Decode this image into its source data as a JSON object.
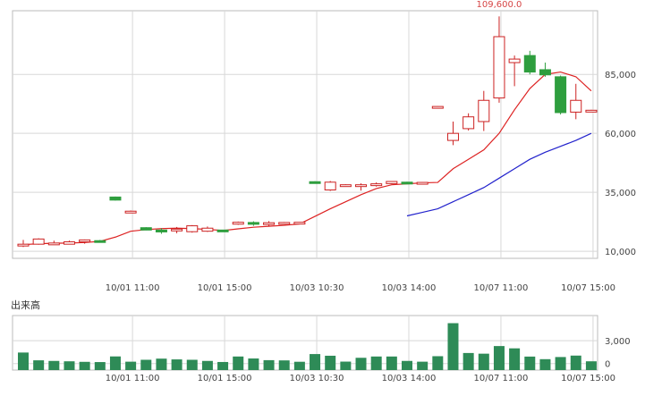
{
  "chart_data": [
    {
      "type": "candlestick",
      "title": "",
      "x_tick_labels": [
        "10/01 11:00",
        "10/01 15:00",
        "10/03 10:30",
        "10/03 14:00",
        "10/07 11:00",
        "10/07 15:00"
      ],
      "x_tick_indices": [
        7,
        13,
        19,
        25,
        31,
        37
      ],
      "y_ticks": [
        10000,
        35000,
        60000,
        85000
      ],
      "y_tick_labels": [
        "10,000",
        "35,000",
        "60,000",
        "85,000"
      ],
      "ylim": [
        7000,
        112000
      ],
      "max_label": "109,600.0",
      "max_index": 31,
      "grid": true,
      "colors": {
        "up": "#cc2222",
        "down": "#2e9e3e",
        "ma_short": "#dd2222",
        "ma_long": "#2222cc",
        "grid": "#d8d8d8",
        "axis": "#bbbbbb"
      },
      "candles": [
        {
          "o": 12500,
          "h": 14800,
          "l": 11800,
          "c": 13000
        },
        {
          "o": 13000,
          "h": 15500,
          "l": 12800,
          "c": 15200
        },
        {
          "o": 13500,
          "h": 14500,
          "l": 12900,
          "c": 13500
        },
        {
          "o": 13000,
          "h": 14500,
          "l": 12900,
          "c": 14000
        },
        {
          "o": 14000,
          "h": 15000,
          "l": 13200,
          "c": 14800
        },
        {
          "o": 14500,
          "h": 14800,
          "l": 14000,
          "c": 14200
        },
        {
          "o": 33000,
          "h": 33200,
          "l": 31500,
          "c": 31700
        },
        {
          "o": 27000,
          "h": 27300,
          "l": 26900,
          "c": 27000
        },
        {
          "o": 20000,
          "h": 20200,
          "l": 18900,
          "c": 19000
        },
        {
          "o": 19000,
          "h": 19800,
          "l": 17400,
          "c": 18200
        },
        {
          "o": 18700,
          "h": 20300,
          "l": 17600,
          "c": 19400
        },
        {
          "o": 18300,
          "h": 21100,
          "l": 17900,
          "c": 20800
        },
        {
          "o": 18500,
          "h": 20500,
          "l": 18200,
          "c": 19800
        },
        {
          "o": 19000,
          "h": 19100,
          "l": 18600,
          "c": 18800
        },
        {
          "o": 21500,
          "h": 22600,
          "l": 21200,
          "c": 22300
        },
        {
          "o": 22200,
          "h": 22700,
          "l": 20800,
          "c": 21800
        },
        {
          "o": 21500,
          "h": 22800,
          "l": 20600,
          "c": 22100
        },
        {
          "o": 22200,
          "h": 22400,
          "l": 21900,
          "c": 22200
        },
        {
          "o": 22200,
          "h": 22400,
          "l": 22000,
          "c": 22300
        },
        {
          "o": 39500,
          "h": 39700,
          "l": 38700,
          "c": 39000
        },
        {
          "o": 36000,
          "h": 39800,
          "l": 35600,
          "c": 39300
        },
        {
          "o": 38200,
          "h": 38400,
          "l": 37900,
          "c": 38200
        },
        {
          "o": 38200,
          "h": 38800,
          "l": 35700,
          "c": 38200
        },
        {
          "o": 38000,
          "h": 39200,
          "l": 37400,
          "c": 38600
        },
        {
          "o": 38700,
          "h": 39700,
          "l": 38500,
          "c": 39600
        },
        {
          "o": 39300,
          "h": 39500,
          "l": 38800,
          "c": 39100
        },
        {
          "o": 39200,
          "h": 39300,
          "l": 38900,
          "c": 39200
        },
        {
          "o": 71400,
          "h": 71500,
          "l": 71200,
          "c": 71400
        },
        {
          "o": 57000,
          "h": 65000,
          "l": 55000,
          "c": 60000
        },
        {
          "o": 62000,
          "h": 68500,
          "l": 61200,
          "c": 67000
        },
        {
          "o": 65000,
          "h": 78000,
          "l": 61000,
          "c": 74000
        },
        {
          "o": 75000,
          "h": 109600,
          "l": 73000,
          "c": 101000
        },
        {
          "o": 90000,
          "h": 93000,
          "l": 80000,
          "c": 91500
        },
        {
          "o": 93000,
          "h": 95000,
          "l": 85000,
          "c": 86000
        },
        {
          "o": 87000,
          "h": 90000,
          "l": 84000,
          "c": 84800
        },
        {
          "o": 84000,
          "h": 84500,
          "l": 68000,
          "c": 68800
        },
        {
          "o": 69000,
          "h": 81000,
          "l": 66000,
          "c": 74000
        },
        {
          "o": 69800,
          "h": 70000,
          "l": 69600,
          "c": 69800
        }
      ],
      "ma_short": [
        12800,
        13200,
        13400,
        13500,
        13700,
        14200,
        16000,
        18500,
        19200,
        19600,
        19800,
        19600,
        19300,
        18800,
        19500,
        20200,
        20600,
        21000,
        21600,
        24800,
        28000,
        31000,
        34000,
        36600,
        38200,
        38600,
        39000,
        39200,
        45000,
        49000,
        53000,
        60000,
        70000,
        79000,
        85000,
        86000,
        84000,
        78000
      ],
      "ma_long_start": 25,
      "ma_long": [
        25000,
        26500,
        28000,
        31000,
        34000,
        37000,
        41000,
        45000,
        49000,
        52000,
        54500,
        57000,
        60000
      ]
    },
    {
      "type": "bar",
      "title": "出来高",
      "y_ticks": [
        0,
        3000
      ],
      "y_tick_labels": [
        "0",
        "3,000"
      ],
      "ylim": [
        -850,
        6300
      ],
      "x_tick_labels": [
        "10/01 11:00",
        "10/01 15:00",
        "10/03 10:30",
        "10/03 14:00",
        "10/07 11:00",
        "10/07 15:00"
      ],
      "values": [
        1450,
        430,
        350,
        300,
        230,
        200,
        940,
        250,
        500,
        650,
        550,
        500,
        350,
        210,
        930,
        670,
        450,
        420,
        240,
        1250,
        1030,
        260,
        760,
        930,
        930,
        350,
        250,
        970,
        5300,
        1390,
        1300,
        2300,
        2000,
        920,
        580,
        860,
        1050,
        300
      ],
      "bar_color": "#2e8b57"
    }
  ]
}
